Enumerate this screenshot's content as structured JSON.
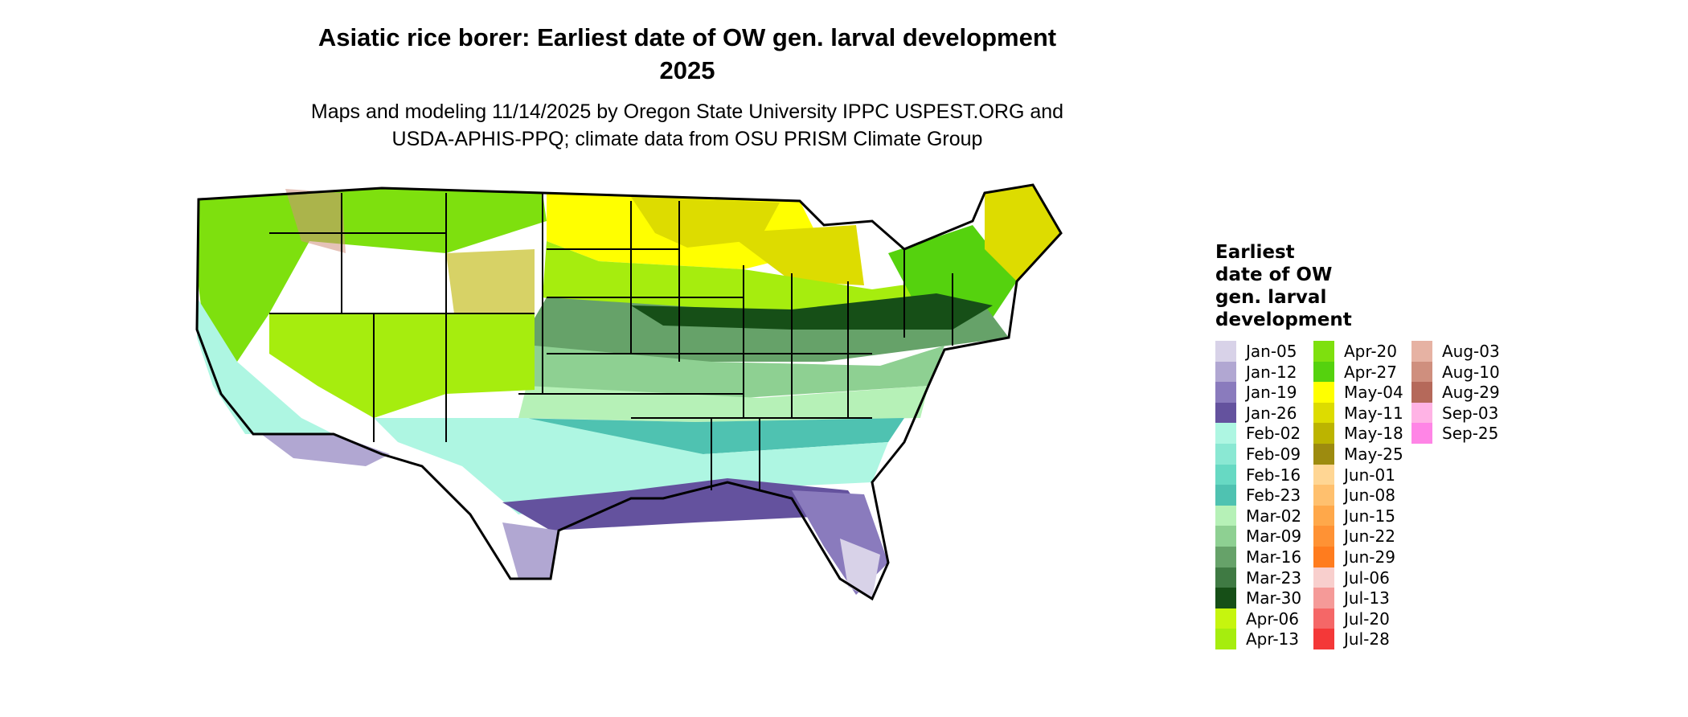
{
  "title": "Asiatic rice borer: Earliest date of OW gen. larval development",
  "year": "2025",
  "subtitle_line1": "Maps and modeling 11/14/2025 by Oregon State University IPPC USPEST.ORG and",
  "subtitle_line2": "USDA-APHIS-PPQ; climate data from OSU PRISM Climate Group",
  "legend": {
    "title_lines": [
      "Earliest",
      "date of OW",
      "gen. larval",
      "development"
    ],
    "items": [
      {
        "label": "Jan-05",
        "color": "#d8d2e8"
      },
      {
        "label": "Jan-12",
        "color": "#b1a7d2"
      },
      {
        "label": "Jan-19",
        "color": "#8a7bbd"
      },
      {
        "label": "Jan-26",
        "color": "#64529e"
      },
      {
        "label": "Feb-02",
        "color": "#aef6e2"
      },
      {
        "label": "Feb-09",
        "color": "#8ae8d3"
      },
      {
        "label": "Feb-16",
        "color": "#67d9c3"
      },
      {
        "label": "Feb-23",
        "color": "#4fc2b1"
      },
      {
        "label": "Mar-02",
        "color": "#b6f1b7"
      },
      {
        "label": "Mar-09",
        "color": "#8ed092"
      },
      {
        "label": "Mar-16",
        "color": "#66a269"
      },
      {
        "label": "Mar-23",
        "color": "#3f7a43"
      },
      {
        "label": "Mar-30",
        "color": "#164f17"
      },
      {
        "label": "Apr-06",
        "color": "#c6f50e"
      },
      {
        "label": "Apr-13",
        "color": "#a6ed0e"
      },
      {
        "label": "Apr-20",
        "color": "#7ee00e"
      },
      {
        "label": "Apr-27",
        "color": "#55d20e"
      },
      {
        "label": "May-04",
        "color": "#ffff00"
      },
      {
        "label": "May-11",
        "color": "#dddc00"
      },
      {
        "label": "May-18",
        "color": "#bcb400"
      },
      {
        "label": "May-25",
        "color": "#9d8b0f"
      },
      {
        "label": "Jun-01",
        "color": "#ffd694"
      },
      {
        "label": "Jun-08",
        "color": "#ffc06e"
      },
      {
        "label": "Jun-15",
        "color": "#ffa84a"
      },
      {
        "label": "Jun-22",
        "color": "#ff9234"
      },
      {
        "label": "Jun-29",
        "color": "#ff7c1e"
      },
      {
        "label": "Jul-06",
        "color": "#f8cfcd"
      },
      {
        "label": "Jul-13",
        "color": "#f59a98"
      },
      {
        "label": "Jul-20",
        "color": "#f56767"
      },
      {
        "label": "Jul-28",
        "color": "#f43838"
      },
      {
        "label": "Aug-03",
        "color": "#e6b2a3"
      },
      {
        "label": "Aug-10",
        "color": "#cf8f7e"
      },
      {
        "label": "Aug-29",
        "color": "#b5695a"
      },
      {
        "label": "Sep-03",
        "color": "#ffb3e5"
      },
      {
        "label": "Sep-25",
        "color": "#ff85e6"
      }
    ]
  }
}
